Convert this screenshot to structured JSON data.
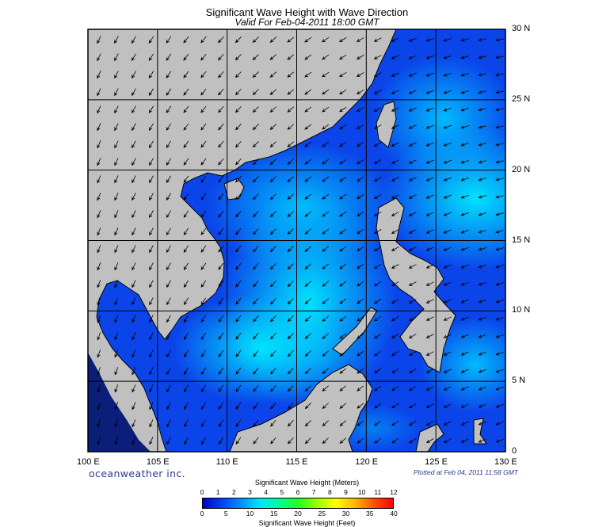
{
  "title": "Significant Wave Height with Wave Direction",
  "subtitle": "Valid For Feb-04-2011 18:00 GMT",
  "lon_labels": [
    "100 E",
    "105 E",
    "110 E",
    "115 E",
    "120 E",
    "125 E",
    "130 E"
  ],
  "lat_labels": [
    "30 N",
    "25 N",
    "20 N",
    "15 N",
    "10 N",
    "5 N",
    "0"
  ],
  "brand": "oceanweather inc.",
  "plotted": "Plotted at Feb 04, 2011 11:58 GMT",
  "colorbar": {
    "title_top": "Significant Wave Height (Meters)",
    "title_bottom": "Significant Wave Height (Feet)",
    "meters_ticks": [
      "0",
      "1",
      "2",
      "3",
      "4",
      "5",
      "6",
      "7",
      "8",
      "9",
      "10",
      "11",
      "12"
    ],
    "feet_ticks": [
      "0",
      "5",
      "10",
      "15",
      "20",
      "25",
      "30",
      "35",
      "40"
    ]
  },
  "colors": {
    "land": "#c0c0c0",
    "sea_deep": "#0a3ee8",
    "sea_mid": "#0a8aff",
    "sea_high": "#00e0ff"
  }
}
